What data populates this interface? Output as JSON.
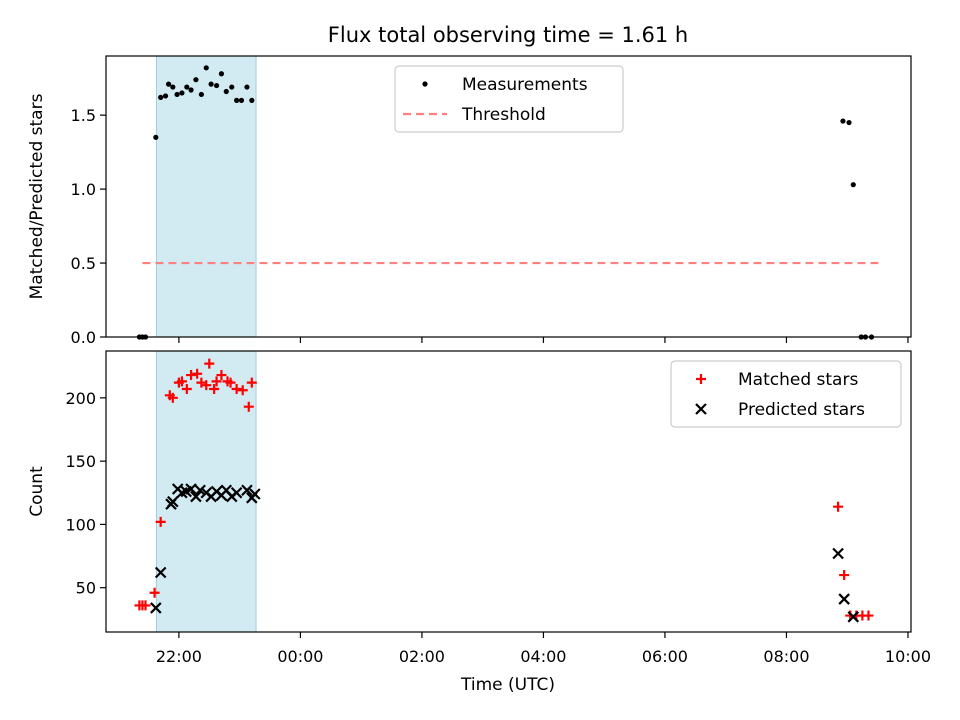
{
  "figure": {
    "title": "Flux total observing time = 1.61 h",
    "xlabel": "Time (UTC)",
    "shade_color": "#add8e6",
    "x_ticks": [
      {
        "t": -2,
        "label": "22:00"
      },
      {
        "t": 0,
        "label": "00:00"
      },
      {
        "t": 2,
        "label": "02:00"
      },
      {
        "t": 4,
        "label": "04:00"
      },
      {
        "t": 6,
        "label": "06:00"
      },
      {
        "t": 8,
        "label": "08:00"
      },
      {
        "t": 10,
        "label": "10:00"
      }
    ]
  },
  "chart_data": [
    {
      "type": "scatter",
      "title": "Flux total observing time = 1.61 h",
      "xlabel": "",
      "ylabel": "Matched/Predicted stars",
      "x_unit": "hours from 00:00 UTC",
      "xlim": [
        -3.2,
        10.05
      ],
      "ylim": [
        0,
        1.9
      ],
      "y_ticks": [
        0.0,
        0.5,
        1.0,
        1.5
      ],
      "y_tick_labels": [
        "0.0",
        "0.5",
        "1.0",
        "1.5"
      ],
      "shaded_x_range": [
        -2.37,
        -0.73
      ],
      "legend": {
        "position": "upper center"
      },
      "series": [
        {
          "name": "Measurements",
          "marker": "dot",
          "color": "#000000",
          "x": [
            -2.65,
            -2.6,
            -2.55,
            -2.38,
            -2.3,
            -2.22,
            -2.17,
            -2.1,
            -2.03,
            -1.95,
            -1.87,
            -1.8,
            -1.72,
            -1.63,
            -1.55,
            -1.47,
            -1.38,
            -1.3,
            -1.22,
            -1.13,
            -1.05,
            -0.97,
            -0.88,
            -0.8,
            8.93,
            9.03,
            9.1,
            9.23,
            9.3,
            9.4
          ],
          "y": [
            0,
            0,
            0,
            1.35,
            1.62,
            1.63,
            1.71,
            1.69,
            1.64,
            1.65,
            1.69,
            1.67,
            1.74,
            1.64,
            1.82,
            1.71,
            1.7,
            1.78,
            1.66,
            1.69,
            1.6,
            1.6,
            1.69,
            1.6,
            1.46,
            1.45,
            1.03,
            0,
            0,
            0
          ]
        },
        {
          "name": "Threshold",
          "marker": "dashed-line",
          "color": "#ff8080",
          "x": [
            -2.6,
            9.55
          ],
          "y": [
            0.5,
            0.5
          ]
        }
      ]
    },
    {
      "type": "scatter",
      "title": "",
      "xlabel": "Time (UTC)",
      "ylabel": "Count",
      "x_unit": "hours from 00:00 UTC",
      "xlim": [
        -3.2,
        10.05
      ],
      "ylim": [
        15,
        237
      ],
      "y_ticks": [
        50,
        100,
        150,
        200
      ],
      "y_tick_labels": [
        "50",
        "100",
        "150",
        "200"
      ],
      "shaded_x_range": [
        -2.37,
        -0.73
      ],
      "legend": {
        "position": "upper right"
      },
      "series": [
        {
          "name": "Matched stars",
          "marker": "plus",
          "color": "#ff0000",
          "x": [
            -2.65,
            -2.6,
            -2.55,
            -2.4,
            -2.3,
            -2.15,
            -2.1,
            -2.0,
            -1.95,
            -1.87,
            -1.8,
            -1.7,
            -1.63,
            -1.55,
            -1.5,
            -1.42,
            -1.38,
            -1.3,
            -1.2,
            -1.15,
            -1.05,
            -0.95,
            -0.85,
            -0.8,
            8.85,
            8.95,
            9.05,
            9.15,
            9.25,
            9.35
          ],
          "y": [
            36,
            36,
            36,
            46,
            102,
            202,
            200,
            212,
            213,
            207,
            218,
            219,
            212,
            210,
            227,
            207,
            213,
            218,
            213,
            212,
            207,
            206,
            193,
            212,
            114,
            60,
            28,
            28,
            28,
            28
          ]
        },
        {
          "name": "Predicted stars",
          "marker": "x",
          "color": "#000000",
          "x": [
            -2.38,
            -2.3,
            -2.13,
            -2.1,
            -2.02,
            -1.95,
            -1.88,
            -1.8,
            -1.72,
            -1.65,
            -1.55,
            -1.47,
            -1.38,
            -1.3,
            -1.22,
            -1.13,
            -1.05,
            -0.88,
            -0.8,
            -0.75,
            8.85,
            8.95,
            9.1
          ],
          "y": [
            34,
            62,
            116,
            118,
            128,
            125,
            126,
            128,
            122,
            127,
            125,
            122,
            126,
            123,
            127,
            122,
            125,
            127,
            121,
            124,
            77,
            41,
            27
          ]
        }
      ]
    }
  ]
}
